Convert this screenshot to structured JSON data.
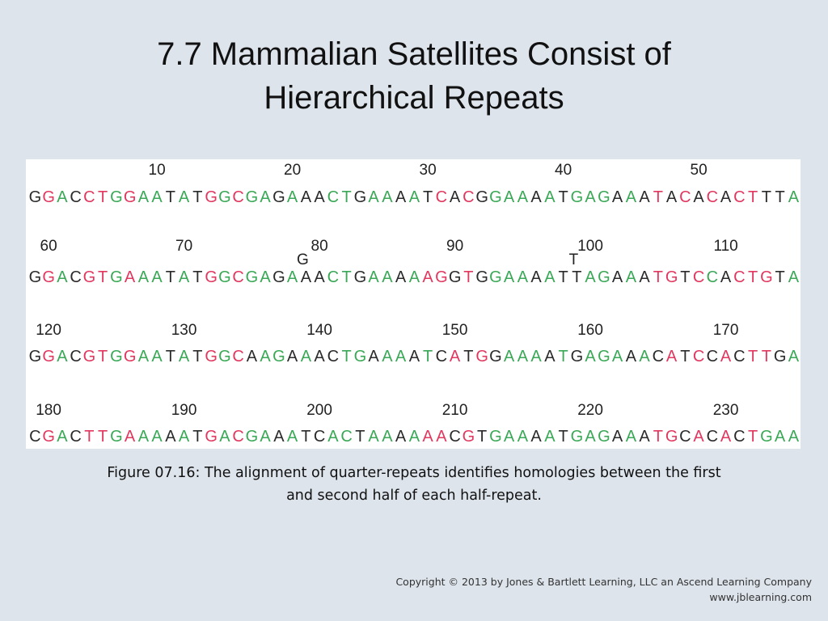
{
  "slide": {
    "title": "7.7  Mammalian Satellites Consist of\nHierarchical Repeats",
    "caption": "Figure 07.16: The alignment of quarter-repeats identifies homologies between the first\nand second half of each half-repeat.",
    "copyright": "Copyright © 2013 by Jones & Bartlett Learning, LLC an Ascend Learning Company",
    "website": "www.jblearning.com"
  },
  "colors": {
    "match": "#2b2b2b",
    "variant": "#e0385f",
    "conserved": "#3aa856"
  },
  "alignment": {
    "rows": [
      {
        "sequence": "GGACCTGGAATATGGCGAGAAACTGAAAATCACGGAAAATGAGAAATACACACTTTA",
        "colors": "KPGKPPGPGGKGKPGPGGKGKKGGKGGKGKPKPKGGGKGKGGGKGKPKPKPKPPKKG",
        "positions": [
          "10",
          "20",
          "30",
          "40",
          "50"
        ],
        "inserts": []
      },
      {
        "sequence": "GGACGTGAAATATGGCGAGAAACTGAAAAAGGTGGAAAATTAGAAATGTCCACTGTA",
        "colors": "KPGKPPGPGGKGKPGPGGKGKKGGKGGKGPPKPKGGGKGKKGGKGKPPKPGKPPPKG",
        "positions": [
          "60",
          "70",
          "80",
          "90",
          "100",
          "110"
        ],
        "inserts": [
          {
            "char": "G",
            "after": 20
          },
          {
            "char": "T",
            "after": 40
          }
        ]
      },
      {
        "sequence": "GGACGTGGAATATGGCAAGAAACTGAAAATCATGGAAAATGAGAAACATCCACTTGA",
        "colors": "KPGKPPGPGGKGKPGPKGGKGKKGGKGGKGKPKPKGGGKGKGGGKGKPKPKPKPPKG",
        "positions": [
          "120",
          "130",
          "140",
          "150",
          "160",
          "170"
        ],
        "inserts": []
      },
      {
        "sequence": "CGACTTGAAAAATGACGAAATCACTAAAAAACGTGAAAATGAGAAATGCACACTGAA",
        "colors": "KPGKPPGPGGKGKPGPGGKGKKGGKGGKGPPKPKGGGKGKGGGKGKPPKPKPKPGGG",
        "positions": [
          "180",
          "190",
          "200",
          "210",
          "220",
          "230"
        ],
        "inserts": []
      }
    ]
  }
}
